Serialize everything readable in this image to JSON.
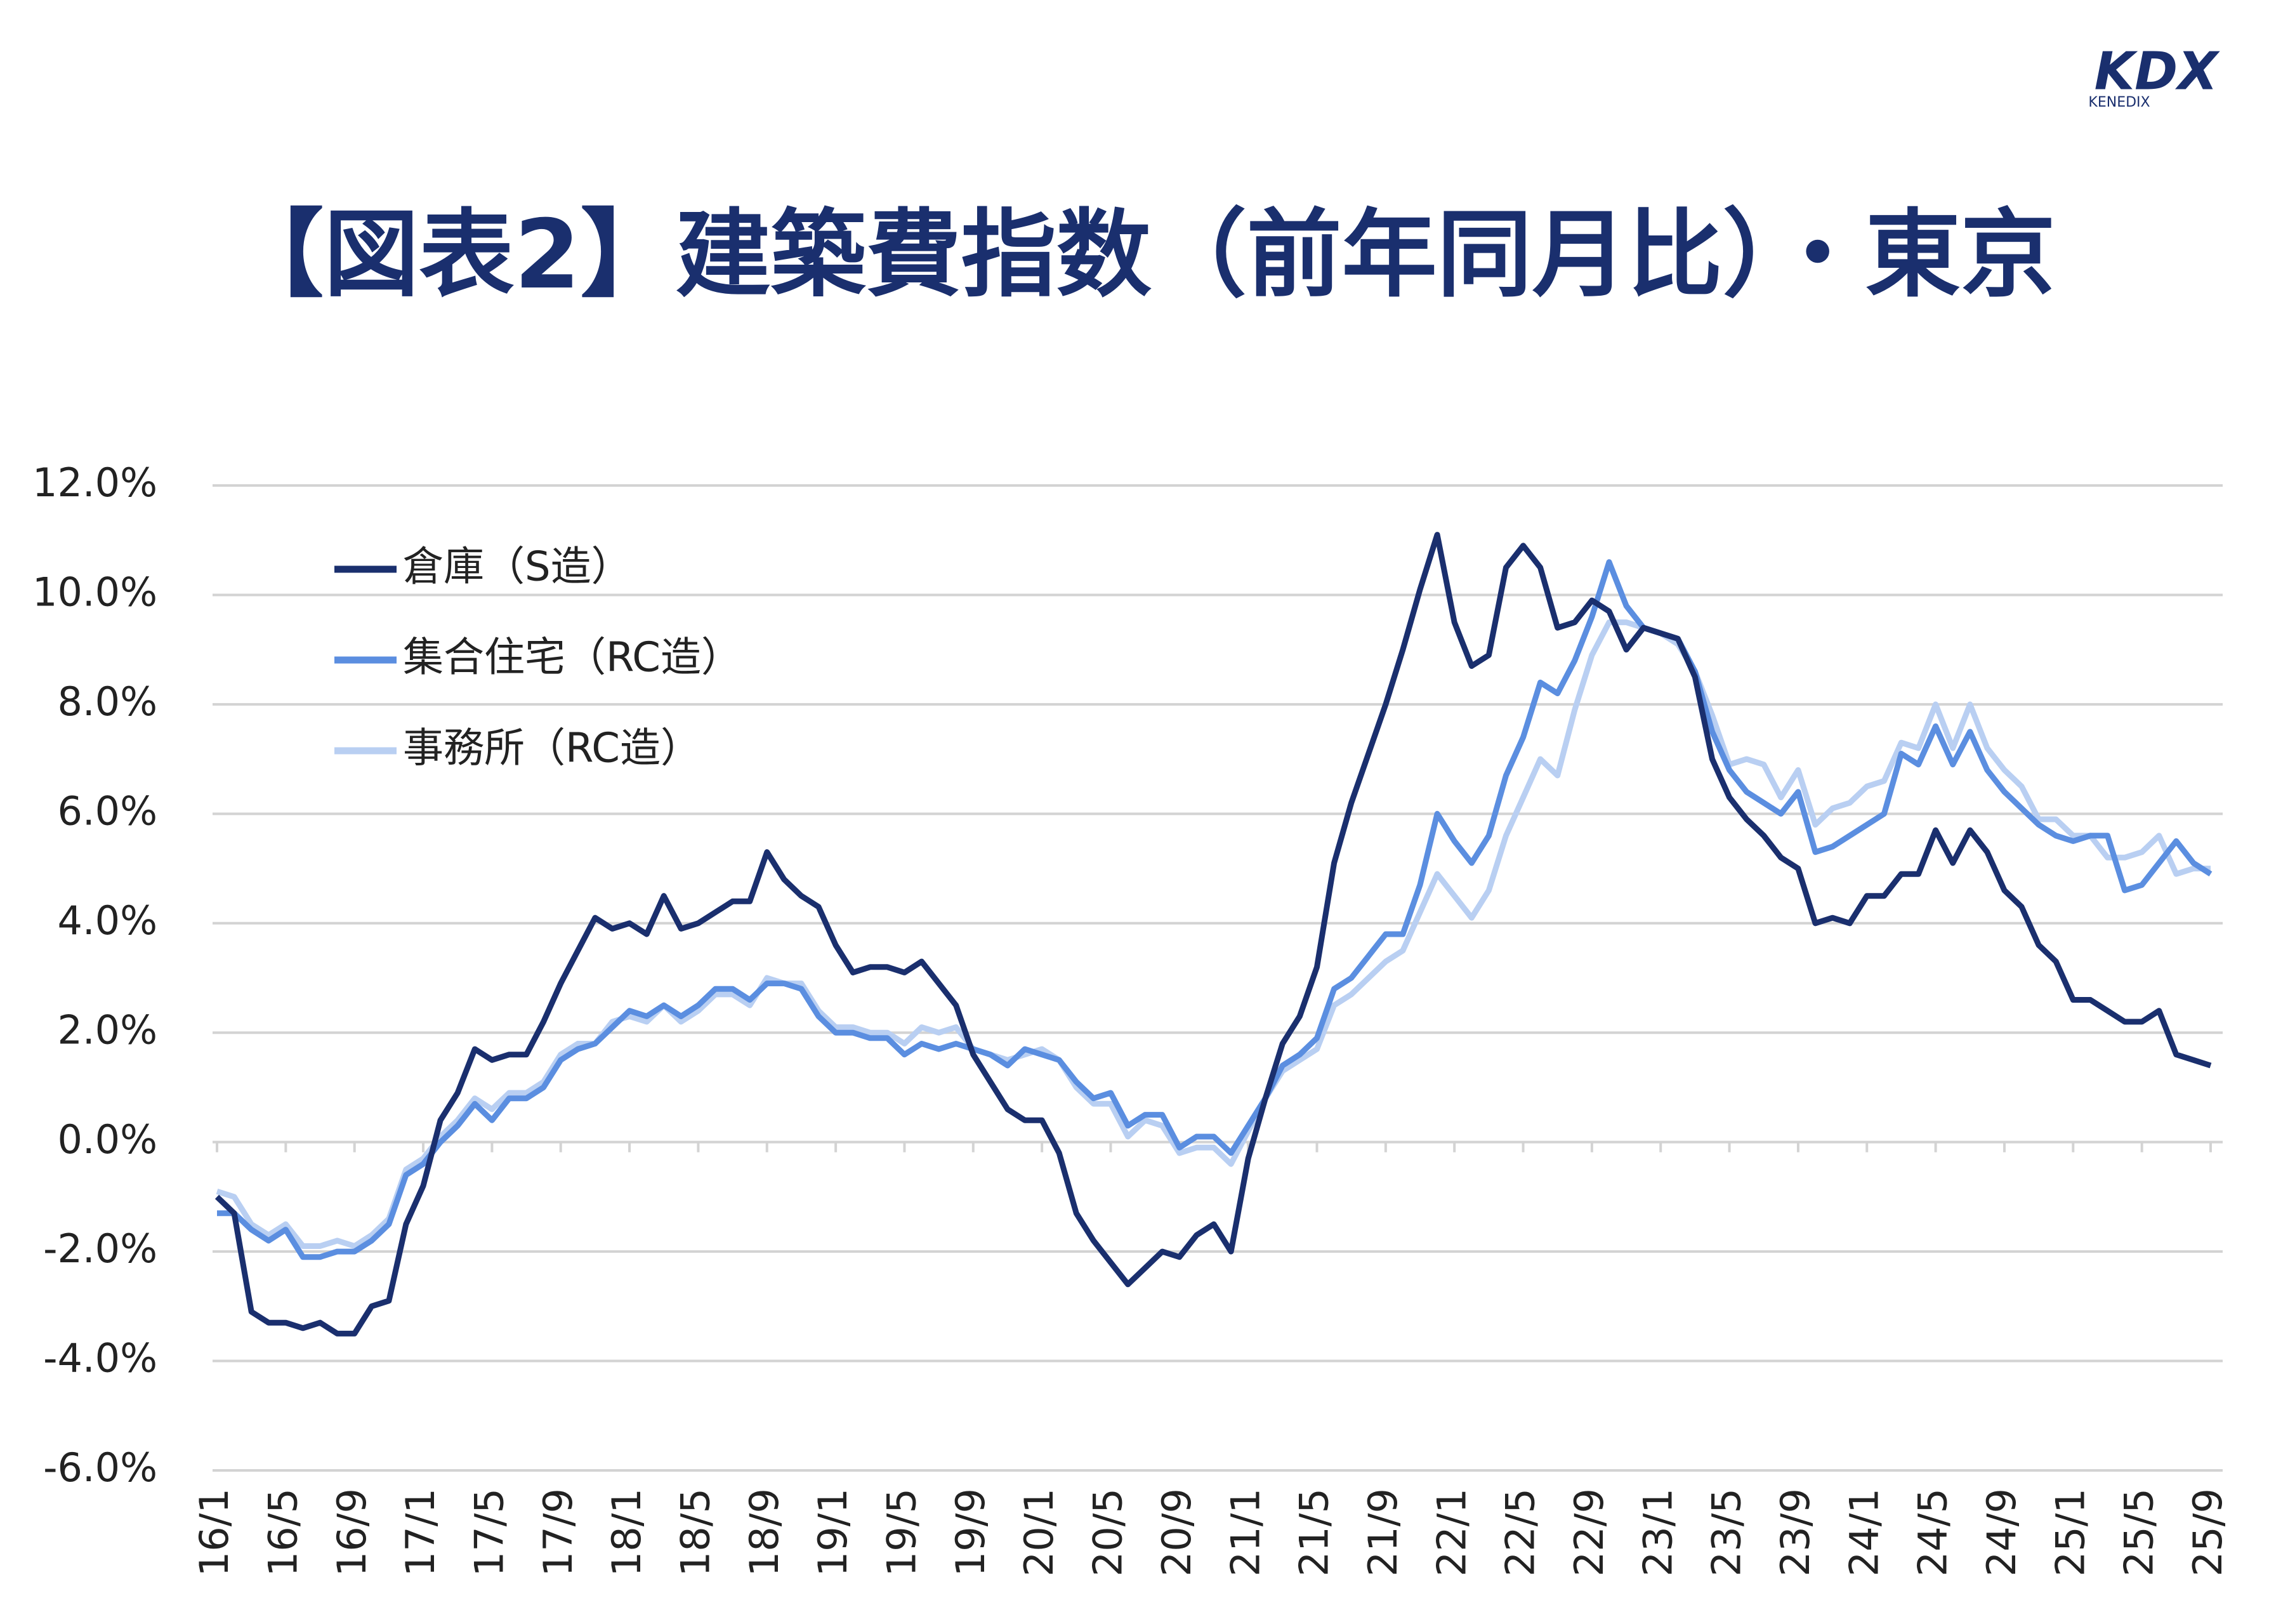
{
  "logo": {
    "mark": "KDX",
    "name": "KENEDIX"
  },
  "chart_data": {
    "type": "line",
    "title": "【図表2】建築費指数（前年同月比）・東京",
    "categories": [
      "16/1",
      null,
      null,
      null,
      "16/5",
      null,
      null,
      null,
      "16/9",
      null,
      null,
      null,
      "17/1",
      null,
      null,
      null,
      "17/5",
      null,
      null,
      null,
      "17/9",
      null,
      null,
      null,
      "18/1",
      null,
      null,
      null,
      "18/5",
      null,
      null,
      null,
      "18/9",
      null,
      null,
      null,
      "19/1",
      null,
      null,
      null,
      "19/5",
      null,
      null,
      null,
      "19/9",
      null,
      null,
      null,
      "20/1",
      null,
      null,
      null,
      "20/5",
      null,
      null,
      null,
      "20/9",
      null,
      null,
      null,
      "21/1",
      null,
      null,
      null,
      "21/5",
      null,
      null,
      null,
      "21/9",
      null,
      null,
      null,
      "22/1",
      null,
      null,
      null,
      "22/5",
      null,
      null,
      null,
      "22/9",
      null,
      null,
      null,
      "23/1",
      null,
      null,
      null,
      "23/5",
      null,
      null,
      null,
      "23/9",
      null,
      null,
      null,
      "24/1",
      null,
      null,
      null,
      "24/5",
      null,
      null,
      null,
      "24/9",
      null,
      null,
      null,
      "25/1",
      null,
      null,
      null,
      "25/5",
      null,
      null,
      null,
      "25/9"
    ],
    "series": [
      {
        "name": "倉庫（S造）",
        "color": "#1a2f6e",
        "values": [
          -1.0,
          -1.3,
          -3.1,
          -3.3,
          -3.3,
          -3.4,
          -3.3,
          -3.5,
          -3.5,
          -3.0,
          -2.9,
          -1.5,
          -0.8,
          0.4,
          0.9,
          1.7,
          1.5,
          1.6,
          1.6,
          2.2,
          2.9,
          3.5,
          4.1,
          3.9,
          4.0,
          3.8,
          4.5,
          3.9,
          4.0,
          4.2,
          4.4,
          4.4,
          5.3,
          4.8,
          4.5,
          4.3,
          3.6,
          3.1,
          3.2,
          3.2,
          3.1,
          3.3,
          2.9,
          2.5,
          1.6,
          1.1,
          0.6,
          0.4,
          0.4,
          -0.2,
          -1.3,
          -1.8,
          -2.2,
          -2.6,
          -2.3,
          -2.0,
          -2.1,
          -1.7,
          -1.5,
          -2.0,
          -0.3,
          0.8,
          1.8,
          2.3,
          3.2,
          5.1,
          6.2,
          7.1,
          8.0,
          9.0,
          10.1,
          11.1,
          9.5,
          8.7,
          8.9,
          10.5,
          10.9,
          10.5,
          9.4,
          9.5,
          9.9,
          9.7,
          9.0,
          9.4,
          9.3,
          9.2,
          8.5,
          7.0,
          6.3,
          5.9,
          5.6,
          5.2,
          5.0,
          4.0,
          4.1,
          4.0,
          4.5,
          4.5,
          4.9,
          4.9,
          5.7,
          5.1,
          5.7,
          5.3,
          4.6,
          4.3,
          3.6,
          3.3,
          2.6,
          2.6,
          2.4,
          2.2,
          2.2,
          2.4,
          1.6,
          1.5,
          1.4
        ]
      },
      {
        "name": "集合住宅（RC造）",
        "color": "#5b8ee0",
        "values": [
          -1.3,
          -1.3,
          -1.6,
          -1.8,
          -1.6,
          -2.1,
          -2.1,
          -2.0,
          -2.0,
          -1.8,
          -1.5,
          -0.6,
          -0.4,
          0.0,
          0.3,
          0.7,
          0.4,
          0.8,
          0.8,
          1.0,
          1.5,
          1.7,
          1.8,
          2.1,
          2.4,
          2.3,
          2.5,
          2.3,
          2.5,
          2.8,
          2.8,
          2.6,
          2.9,
          2.9,
          2.8,
          2.3,
          2.0,
          2.0,
          1.9,
          1.9,
          1.6,
          1.8,
          1.7,
          1.8,
          1.7,
          1.6,
          1.4,
          1.7,
          1.6,
          1.5,
          1.1,
          0.8,
          0.9,
          0.3,
          0.5,
          0.5,
          -0.1,
          0.1,
          0.1,
          -0.2,
          0.3,
          0.8,
          1.4,
          1.6,
          1.9,
          2.8,
          3.0,
          3.4,
          3.8,
          3.8,
          4.7,
          6.0,
          5.5,
          5.1,
          5.6,
          6.7,
          7.4,
          8.4,
          8.2,
          8.8,
          9.6,
          10.6,
          9.8,
          9.4,
          9.3,
          9.2,
          8.6,
          7.5,
          6.8,
          6.4,
          6.2,
          6.0,
          6.4,
          5.3,
          5.4,
          5.6,
          5.8,
          6.0,
          7.1,
          6.9,
          7.6,
          6.9,
          7.5,
          6.8,
          6.4,
          6.1,
          5.8,
          5.6,
          5.5,
          5.6,
          5.6,
          4.6,
          4.7,
          5.1,
          5.5,
          5.1,
          4.9
        ]
      },
      {
        "name": "事務所（RC造）",
        "color": "#b9cff2",
        "values": [
          -0.9,
          -1.0,
          -1.5,
          -1.7,
          -1.5,
          -1.9,
          -1.9,
          -1.8,
          -1.9,
          -1.7,
          -1.4,
          -0.5,
          -0.3,
          0.1,
          0.4,
          0.8,
          0.6,
          0.9,
          0.9,
          1.1,
          1.6,
          1.8,
          1.8,
          2.2,
          2.3,
          2.2,
          2.5,
          2.2,
          2.4,
          2.7,
          2.7,
          2.5,
          3.0,
          2.9,
          2.9,
          2.4,
          2.1,
          2.1,
          2.0,
          2.0,
          1.8,
          2.1,
          2.0,
          2.1,
          1.7,
          1.6,
          1.5,
          1.6,
          1.7,
          1.5,
          1.0,
          0.7,
          0.7,
          0.1,
          0.4,
          0.3,
          -0.2,
          -0.1,
          -0.1,
          -0.4,
          0.2,
          0.8,
          1.3,
          1.5,
          1.7,
          2.5,
          2.7,
          3.0,
          3.3,
          3.5,
          4.2,
          4.9,
          4.5,
          4.1,
          4.6,
          5.6,
          6.3,
          7.0,
          6.7,
          7.9,
          8.9,
          9.5,
          9.5,
          9.4,
          9.3,
          9.1,
          8.6,
          7.8,
          6.9,
          7.0,
          6.9,
          6.3,
          6.8,
          5.8,
          6.1,
          6.2,
          6.5,
          6.6,
          7.3,
          7.2,
          8.0,
          7.2,
          8.0,
          7.2,
          6.8,
          6.5,
          5.9,
          5.9,
          5.6,
          5.6,
          5.2,
          5.2,
          5.3,
          5.6,
          4.9,
          5.0,
          5.0
        ]
      }
    ],
    "ylim": [
      -6,
      12
    ],
    "yticks": [
      {
        "value": -6,
        "label": "-6.0%"
      },
      {
        "value": -4,
        "label": "-4.0%"
      },
      {
        "value": -2,
        "label": "-2.0%"
      },
      {
        "value": 0,
        "label": "0.0%"
      },
      {
        "value": 2,
        "label": "2.0%"
      },
      {
        "value": 4,
        "label": "4.0%"
      },
      {
        "value": 6,
        "label": "6.0%"
      },
      {
        "value": 8,
        "label": "8.0%"
      },
      {
        "value": 10,
        "label": "10.0%"
      },
      {
        "value": 12,
        "label": "12.0%"
      }
    ],
    "grid": true,
    "legend": "upper left"
  }
}
